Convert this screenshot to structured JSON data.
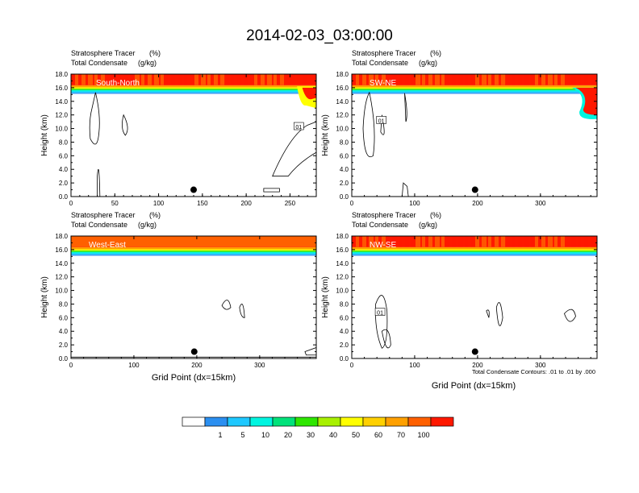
{
  "title": "2014-02-03_03:00:00",
  "panel_header": {
    "line1": "Stratosphere Tracer",
    "line1_units": "(%)",
    "line2": "Total Condensate",
    "line2_units": "(g/kg)"
  },
  "ylabel": "Height (km)",
  "xlabel": "Grid Point (dx=15km)",
  "contour_note": "Total Condensate Contours: .01 to .01 by .000",
  "colorbar": {
    "colors": [
      "#ffffff",
      "#2b8ff0",
      "#1ec8ff",
      "#00f5e0",
      "#00e27a",
      "#2ee600",
      "#a8f000",
      "#ffff00",
      "#ffd000",
      "#ffa000",
      "#ff6000",
      "#ff1800"
    ],
    "labels": [
      "1",
      "5",
      "10",
      "20",
      "30",
      "40",
      "50",
      "60",
      "70",
      "100"
    ]
  },
  "chart_data": [
    {
      "type": "heatmap",
      "name": "South-North",
      "xlim": [
        0,
        280
      ],
      "ylim": [
        0,
        18
      ],
      "x_ticks": [
        0,
        50,
        100,
        150,
        200,
        250
      ],
      "y_ticks": [
        "0.0",
        "2.0",
        "4.0",
        "6.0",
        "8.0",
        "10.0",
        "12.0",
        "14.0",
        "16.0",
        "18.0"
      ],
      "marker": {
        "x": 140,
        "y": 1.0
      },
      "contour_labels": [
        {
          "text": "01",
          "x": 260,
          "y": 10.3
        }
      ],
      "tropopause_km": 16.0
    },
    {
      "type": "heatmap",
      "name": "SW-NE",
      "xlim": [
        0,
        390
      ],
      "ylim": [
        0,
        18
      ],
      "x_ticks": [
        0,
        100,
        200,
        300
      ],
      "y_ticks": [
        "0.0",
        "2.0",
        "4.0",
        "6.0",
        "8.0",
        "10.0",
        "12.0",
        "14.0",
        "16.0",
        "18.0"
      ],
      "marker": {
        "x": 196,
        "y": 1.0
      },
      "contour_labels": [
        {
          "text": "01",
          "x": 47,
          "y": 11.2
        }
      ],
      "tropopause_km": 16.0
    },
    {
      "type": "heatmap",
      "name": "West-East",
      "xlim": [
        0,
        390
      ],
      "ylim": [
        0,
        18
      ],
      "x_ticks": [
        0,
        100,
        200,
        300
      ],
      "y_ticks": [
        "0.0",
        "2.0",
        "4.0",
        "6.0",
        "8.0",
        "10.0",
        "12.0",
        "14.0",
        "16.0",
        "18.0"
      ],
      "marker": {
        "x": 196,
        "y": 1.0
      },
      "contour_labels": [],
      "tropopause_km": 16.0
    },
    {
      "type": "heatmap",
      "name": "NW-SE",
      "xlim": [
        0,
        390
      ],
      "ylim": [
        0,
        18
      ],
      "x_ticks": [
        0,
        100,
        200,
        300
      ],
      "y_ticks": [
        "0.0",
        "2.0",
        "4.0",
        "6.0",
        "8.0",
        "10.0",
        "12.0",
        "14.0",
        "16.0",
        "18.0"
      ],
      "marker": {
        "x": 196,
        "y": 1.0
      },
      "contour_labels": [
        {
          "text": "01",
          "x": 45,
          "y": 6.8
        }
      ],
      "tropopause_km": 16.0
    }
  ]
}
